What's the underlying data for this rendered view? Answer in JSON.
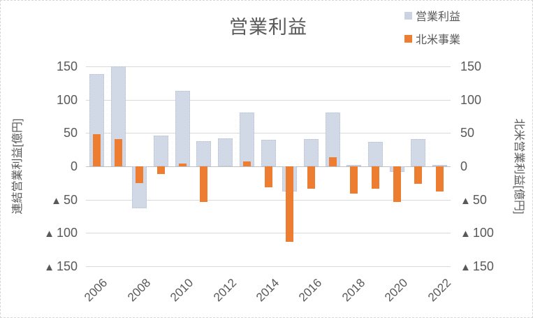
{
  "chart_data": {
    "type": "bar",
    "title": "営業利益",
    "categories": [
      2006,
      2007,
      2008,
      2009,
      2010,
      2011,
      2012,
      2013,
      2014,
      2015,
      2016,
      2017,
      2018,
      2019,
      2020,
      2021,
      2022
    ],
    "series": [
      {
        "name": "営業利益",
        "axis": "primary",
        "color": "#d2d9e6",
        "values": [
          138,
          150,
          -63,
          46,
          113,
          38,
          42,
          81,
          40,
          -38,
          41,
          81,
          2,
          37,
          -8,
          41,
          2
        ]
      },
      {
        "name": "北米事業",
        "axis": "secondary",
        "color": "#ed7d31",
        "values": [
          48,
          41,
          -25,
          -12,
          4,
          -54,
          0,
          7,
          -31,
          -113,
          -34,
          14,
          -41,
          -34,
          -53,
          -26,
          -38
        ]
      }
    ],
    "ylim": [
      -150,
      150
    ],
    "yticks": [
      150,
      100,
      50,
      0,
      -50,
      -100,
      -150
    ],
    "negative_tick_prefix": "▲ ",
    "x_tick_labels": [
      "2006",
      "2008",
      "2010",
      "2012",
      "2014",
      "2016",
      "2018",
      "2020",
      "2022"
    ],
    "grid": true,
    "legend_position": "top-right"
  },
  "legend": [
    {
      "label": "営業利益",
      "color": "#cbd2e1"
    },
    {
      "label": "北米事業",
      "color": "#ed7d31"
    }
  ],
  "axes": {
    "left_title": "連結営業利益[億円]",
    "right_title": "北米営業利益[億円]"
  }
}
